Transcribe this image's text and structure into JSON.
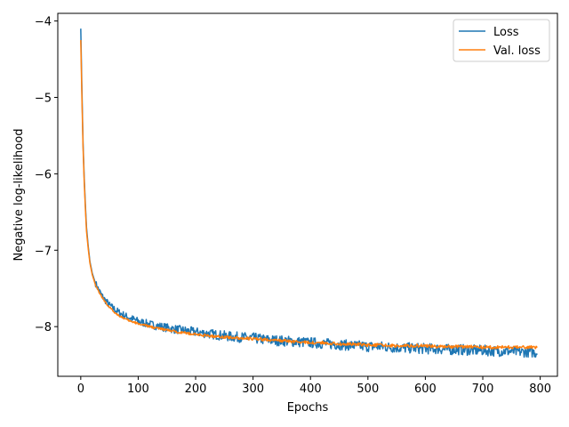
{
  "chart_data": {
    "type": "line",
    "title": "",
    "xlabel": "Epochs",
    "ylabel": "Negative log-likelihood",
    "xlim": [
      -40,
      830
    ],
    "ylim": [
      -8.65,
      -3.9
    ],
    "xticks": [
      0,
      100,
      200,
      300,
      400,
      500,
      600,
      700,
      800
    ],
    "yticks": [
      -4,
      -5,
      -6,
      -7,
      -8
    ],
    "xtick_labels": [
      "0",
      "100",
      "200",
      "300",
      "400",
      "500",
      "600",
      "700",
      "800"
    ],
    "ytick_labels": [
      "−4",
      "−5",
      "−6",
      "−7",
      "−8"
    ],
    "grid": false,
    "legend_position": "top-right",
    "series": [
      {
        "name": "Loss",
        "color": "#1f77b4",
        "x": [
          0,
          2,
          4,
          6,
          8,
          10,
          13,
          16,
          20,
          25,
          30,
          35,
          40,
          50,
          60,
          70,
          80,
          90,
          100,
          120,
          140,
          160,
          180,
          200,
          220,
          240,
          260,
          280,
          300,
          320,
          340,
          360,
          380,
          400,
          420,
          440,
          460,
          480,
          500,
          520,
          540,
          560,
          580,
          600,
          620,
          640,
          660,
          680,
          700,
          720,
          740,
          760,
          780,
          795
        ],
        "y": [
          -4.1,
          -4.9,
          -5.6,
          -6.05,
          -6.4,
          -6.7,
          -6.95,
          -7.15,
          -7.3,
          -7.42,
          -7.5,
          -7.57,
          -7.63,
          -7.72,
          -7.78,
          -7.83,
          -7.87,
          -7.9,
          -7.93,
          -7.97,
          -8.0,
          -8.03,
          -8.05,
          -8.07,
          -8.09,
          -8.11,
          -8.13,
          -8.14,
          -8.15,
          -8.17,
          -8.18,
          -8.19,
          -8.2,
          -8.21,
          -8.22,
          -8.23,
          -8.24,
          -8.25,
          -8.26,
          -8.26,
          -8.27,
          -8.28,
          -8.28,
          -8.29,
          -8.29,
          -8.3,
          -8.3,
          -8.31,
          -8.31,
          -8.32,
          -8.32,
          -8.33,
          -8.33,
          -8.34
        ],
        "noise": 0.05
      },
      {
        "name": "Val. loss",
        "color": "#ff7f0e",
        "x": [
          0,
          2,
          4,
          6,
          8,
          10,
          13,
          16,
          20,
          25,
          30,
          35,
          40,
          50,
          60,
          70,
          80,
          90,
          100,
          120,
          140,
          160,
          180,
          200,
          220,
          240,
          260,
          280,
          300,
          320,
          340,
          360,
          380,
          400,
          420,
          440,
          460,
          480,
          500,
          520,
          540,
          560,
          580,
          600,
          620,
          640,
          660,
          680,
          700,
          720,
          740,
          760,
          780,
          795
        ],
        "y": [
          -4.25,
          -5.0,
          -5.65,
          -6.1,
          -6.45,
          -6.75,
          -6.98,
          -7.17,
          -7.32,
          -7.44,
          -7.52,
          -7.59,
          -7.65,
          -7.75,
          -7.82,
          -7.87,
          -7.91,
          -7.94,
          -7.96,
          -8.0,
          -8.03,
          -8.06,
          -8.08,
          -8.1,
          -8.12,
          -8.13,
          -8.14,
          -8.15,
          -8.16,
          -8.17,
          -8.18,
          -8.19,
          -8.2,
          -8.21,
          -8.21,
          -8.22,
          -8.23,
          -8.23,
          -8.24,
          -8.24,
          -8.25,
          -8.25,
          -8.25,
          -8.25,
          -8.26,
          -8.26,
          -8.26,
          -8.26,
          -8.27,
          -8.27,
          -8.27,
          -8.27,
          -8.27,
          -8.27
        ],
        "noise": 0.02
      }
    ]
  }
}
